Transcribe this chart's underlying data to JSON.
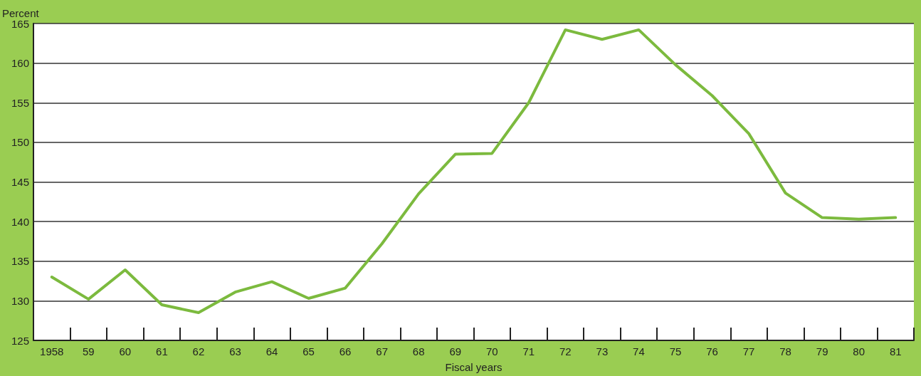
{
  "chart_data": {
    "type": "line",
    "ylabel": "Percent",
    "xlabel": "Fiscal years",
    "categories": [
      "1958",
      "59",
      "60",
      "61",
      "62",
      "63",
      "64",
      "65",
      "66",
      "67",
      "68",
      "69",
      "70",
      "71",
      "72",
      "73",
      "74",
      "75",
      "76",
      "77",
      "78",
      "79",
      "80",
      "81"
    ],
    "series": [
      {
        "color": "#7cba3e",
        "values": [
          133.0,
          130.2,
          133.9,
          129.5,
          128.5,
          131.1,
          132.4,
          130.3,
          131.6,
          137.2,
          143.5,
          148.5,
          148.6,
          155.0,
          164.2,
          163.0,
          164.2,
          159.8,
          155.9,
          151.1,
          143.6,
          140.5,
          140.3,
          140.5
        ]
      }
    ],
    "ylim": [
      125,
      165
    ],
    "yticks": [
      125,
      130,
      135,
      140,
      145,
      150,
      155,
      160,
      165
    ],
    "grid": "y",
    "marker": "none",
    "line_style": "solid"
  }
}
